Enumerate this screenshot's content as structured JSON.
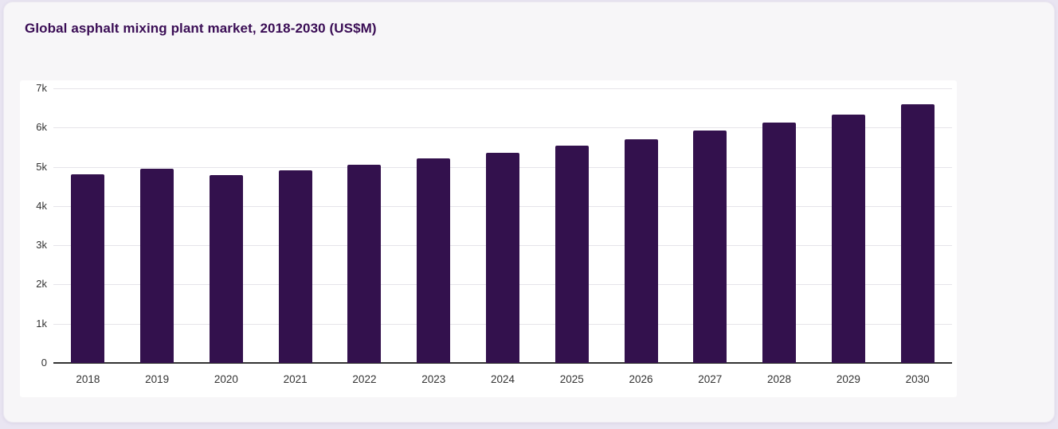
{
  "page": {
    "background_color": "#e9e5f2",
    "card_background_color": "#f7f6f8"
  },
  "header": {
    "title": "Global asphalt mixing plant market, 2018-2030 (US$M)",
    "title_color": "#3a0d55"
  },
  "chart_data": {
    "type": "bar",
    "title": "Global asphalt mixing plant market, 2018-2030 (US$M)",
    "categories": [
      "2018",
      "2019",
      "2020",
      "2021",
      "2022",
      "2023",
      "2024",
      "2025",
      "2026",
      "2027",
      "2028",
      "2029",
      "2030"
    ],
    "values": [
      4800,
      4960,
      4780,
      4920,
      5060,
      5210,
      5350,
      5530,
      5710,
      5920,
      6120,
      6340,
      6590
    ],
    "xlabel": "",
    "ylabel": "",
    "ylim": [
      0,
      7000
    ],
    "ytick_step": 1000,
    "ytick_labels": [
      "0",
      "1k",
      "2k",
      "3k",
      "4k",
      "5k",
      "6k",
      "7k"
    ],
    "grid": true,
    "legend": "none",
    "bar_color": "#33114d",
    "gridline_color": "#e6e4e9",
    "axis_line_color": "#333333",
    "tick_label_color": "#333333",
    "plot_background_color": "#ffffff"
  }
}
